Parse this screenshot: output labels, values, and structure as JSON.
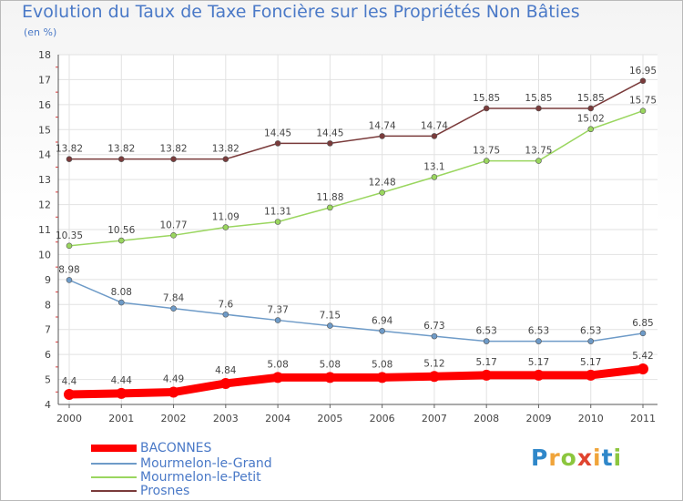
{
  "chart_data": {
    "type": "line",
    "title": "Evolution du Taux de Taxe Foncière sur les Propriétés Non Bâties",
    "subtitle": "(en %)",
    "x": [
      "2000",
      "2001",
      "2002",
      "2003",
      "2004",
      "2005",
      "2006",
      "2007",
      "2008",
      "2009",
      "2010",
      "2011"
    ],
    "ylim": [
      4,
      18
    ],
    "yticks": [
      4,
      5,
      6,
      7,
      8,
      9,
      10,
      11,
      12,
      13,
      14,
      15,
      16,
      17,
      18
    ],
    "grid": true,
    "legend_position": "bottom-left",
    "series": [
      {
        "name": "BACONNES",
        "color": "#ff0000",
        "values": [
          4.4,
          4.44,
          4.49,
          4.84,
          5.08,
          5.08,
          5.08,
          5.12,
          5.17,
          5.17,
          5.17,
          5.42
        ],
        "labels": [
          "4.4",
          "4.44",
          "4.49",
          "4.84",
          "5.08",
          "5.08",
          "5.08",
          "5.12",
          "5.17",
          "5.17",
          "5.17",
          "5.42"
        ]
      },
      {
        "name": "Mourmelon-le-Grand",
        "color": "#6e9bc8",
        "values": [
          8.98,
          8.08,
          7.84,
          7.6,
          7.37,
          7.15,
          6.94,
          6.73,
          6.53,
          6.53,
          6.53,
          6.85
        ],
        "labels": [
          "8.98",
          "8.08",
          "7.84",
          "7.6",
          "7.37",
          "7.15",
          "6.94",
          "6.73",
          "6.53",
          "6.53",
          "6.53",
          "6.85"
        ]
      },
      {
        "name": "Mourmelon-le-Petit",
        "color": "#9ad65f",
        "values": [
          10.35,
          10.56,
          10.77,
          11.09,
          11.31,
          11.88,
          12.48,
          13.1,
          13.75,
          13.75,
          15.02,
          15.75
        ],
        "labels": [
          "10.35",
          "10.56",
          "10.77",
          "11.09",
          "11.31",
          "11.88",
          "12.48",
          "13.1",
          "13.75",
          "13.75",
          "15.02",
          "15.75"
        ]
      },
      {
        "name": "Prosnes",
        "color": "#7a3b3b",
        "values": [
          13.82,
          13.82,
          13.82,
          13.82,
          14.45,
          14.45,
          14.74,
          14.74,
          15.85,
          15.85,
          15.85,
          16.95
        ],
        "labels": [
          "13.82",
          "13.82",
          "13.82",
          "13.82",
          "14.45",
          "14.45",
          "14.74",
          "14.74",
          "15.85",
          "15.85",
          "15.85",
          "16.95"
        ]
      }
    ]
  },
  "brand": {
    "letters": [
      "P",
      "r",
      "o",
      "x",
      "i",
      "t",
      "i"
    ],
    "colors": [
      "#2f87c9",
      "#f0a43a",
      "#8cc63e",
      "#e0442f",
      "#f0a43a",
      "#2f87c9",
      "#8cc63e"
    ]
  }
}
